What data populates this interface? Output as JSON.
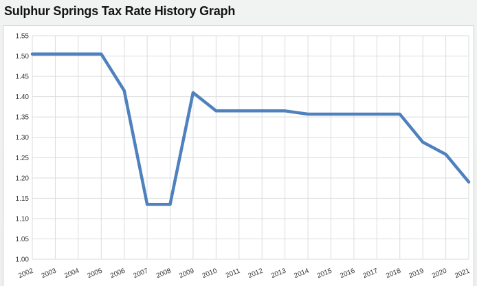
{
  "chart_data": {
    "type": "line",
    "title": "Sulphur Springs Tax Rate History Graph",
    "xlabel": "",
    "ylabel": "",
    "categories": [
      "2002",
      "2003",
      "2004",
      "2005",
      "2006",
      "2007",
      "2008",
      "2009",
      "2010",
      "2011",
      "2012",
      "2013",
      "2014",
      "2015",
      "2016",
      "2017",
      "2018",
      "2019",
      "2020",
      "2021"
    ],
    "series": [
      {
        "values": [
          1.505,
          1.505,
          1.505,
          1.505,
          1.415,
          1.135,
          1.135,
          1.41,
          1.365,
          1.365,
          1.365,
          1.365,
          1.357,
          1.357,
          1.357,
          1.357,
          1.357,
          1.288,
          1.258,
          1.19
        ]
      }
    ],
    "ylim": [
      1.0,
      1.55
    ],
    "yticks": [
      "1.00",
      "1.05",
      "1.10",
      "1.15",
      "1.20",
      "1.25",
      "1.30",
      "1.35",
      "1.40",
      "1.45",
      "1.50",
      "1.55"
    ],
    "grid": true,
    "line_color": "#4e81bd",
    "grid_color": "#d9dcde"
  }
}
